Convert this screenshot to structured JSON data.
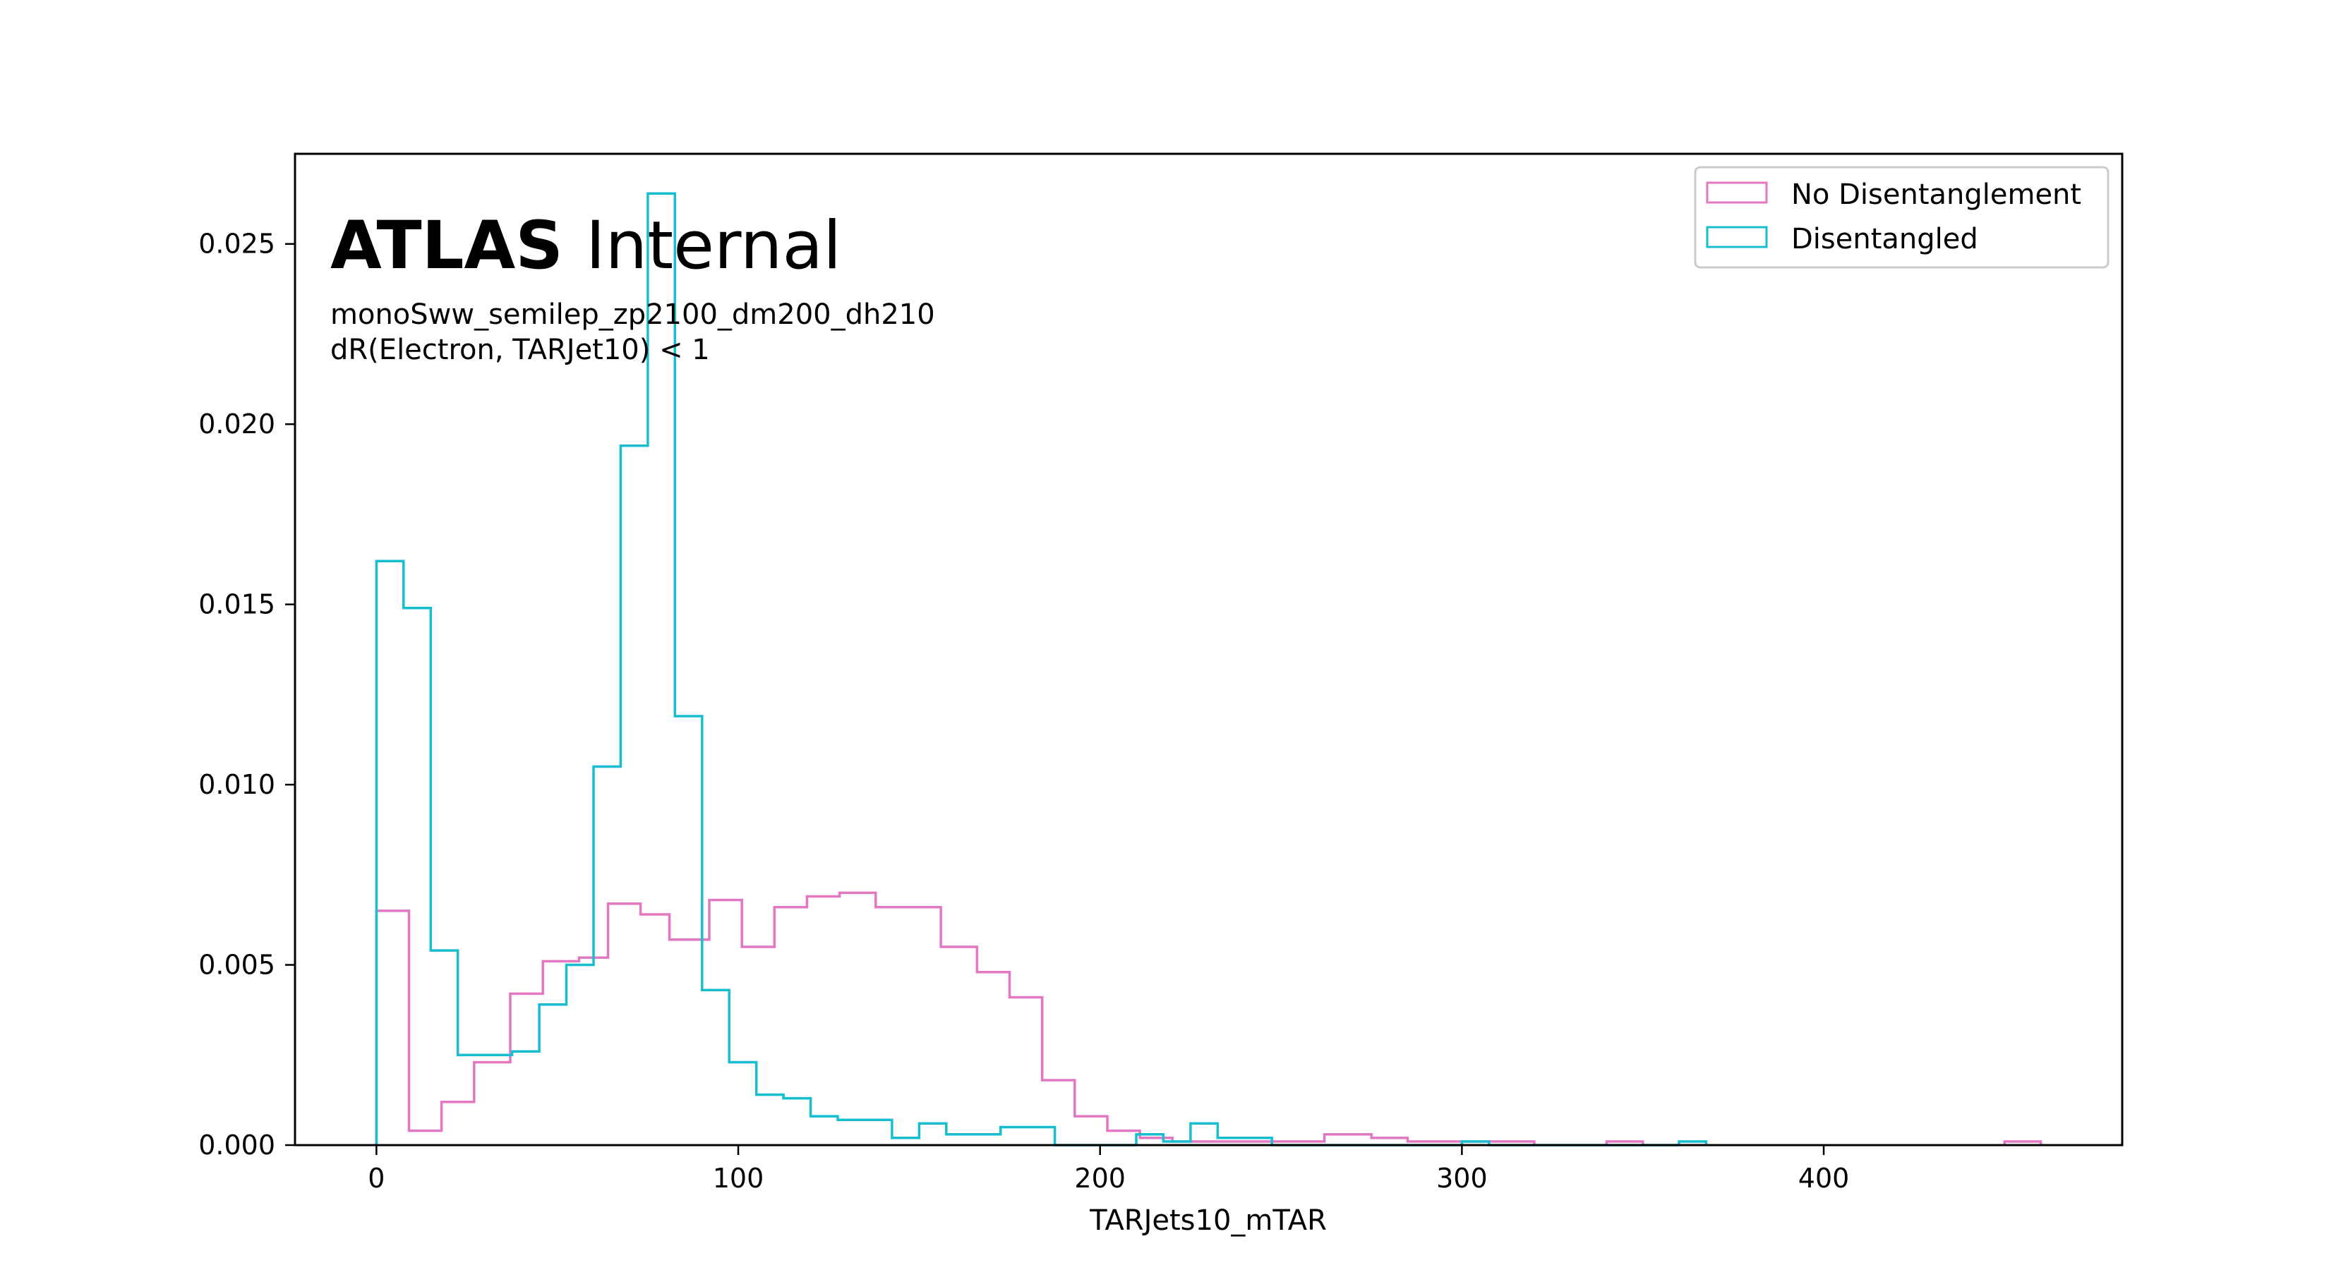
{
  "chart_data": {
    "type": "histogram-step",
    "xlabel": "TARJets10_mTAR",
    "ylabel": "",
    "xlim": [
      -22.5,
      482.5
    ],
    "ylim": [
      0,
      0.0275
    ],
    "xticks": [
      0,
      100,
      200,
      300,
      400
    ],
    "xtick_labels": [
      "0",
      "100",
      "200",
      "300",
      "400"
    ],
    "yticks": [
      0,
      0.005,
      0.01,
      0.015,
      0.02,
      0.025
    ],
    "ytick_labels": [
      "0.000",
      "0.005",
      "0.010",
      "0.015",
      "0.020",
      "0.025"
    ],
    "grid": false,
    "legend_position": "top-right",
    "annotations": {
      "experiment": "ATLAS",
      "status": "Internal",
      "sample": "monoSww_semilep_zp2100_dm200_dh210",
      "selection": "dR(Electron, TARJet10) < 1"
    },
    "bin_width": 7.5,
    "series": [
      {
        "name": "No Disentanglement",
        "color": "#e377c2",
        "bins": [
          [
            0,
            9,
            0.0065
          ],
          [
            9,
            18,
            0.0004
          ],
          [
            18,
            27,
            0.0012
          ],
          [
            27,
            37,
            0.0023
          ],
          [
            37,
            46,
            0.0042
          ],
          [
            46,
            56,
            0.0051
          ],
          [
            56,
            64,
            0.0052
          ],
          [
            64,
            73,
            0.0067
          ],
          [
            73,
            81,
            0.0064
          ],
          [
            81,
            92,
            0.0057
          ],
          [
            92,
            101,
            0.0068
          ],
          [
            101,
            110,
            0.0055
          ],
          [
            110,
            119,
            0.0066
          ],
          [
            119,
            128,
            0.0069
          ],
          [
            128,
            138,
            0.007
          ],
          [
            138,
            156,
            0.0066
          ],
          [
            156,
            166,
            0.0055
          ],
          [
            166,
            175,
            0.0048
          ],
          [
            175,
            184,
            0.0041
          ],
          [
            184,
            193,
            0.0018
          ],
          [
            193,
            202,
            0.0008
          ],
          [
            202,
            211,
            0.0004
          ],
          [
            211,
            220,
            0.0002
          ],
          [
            220,
            230,
            0.0001
          ],
          [
            230,
            262,
            0.0001
          ],
          [
            262,
            275,
            0.0003
          ],
          [
            275,
            285,
            0.0002
          ],
          [
            285,
            320,
            0.0001
          ],
          [
            340,
            350,
            0.0001
          ],
          [
            450,
            460,
            0.0001
          ]
        ]
      },
      {
        "name": "Disentangled",
        "color": "#17becf",
        "bins": [
          [
            0,
            7.5,
            0.0162
          ],
          [
            7.5,
            15,
            0.0149
          ],
          [
            15,
            22.5,
            0.0054
          ],
          [
            22.5,
            30,
            0.0025
          ],
          [
            30,
            37.5,
            0.0025
          ],
          [
            37.5,
            45,
            0.0026
          ],
          [
            45,
            52.5,
            0.0039
          ],
          [
            52.5,
            60,
            0.005
          ],
          [
            60,
            67.5,
            0.0105
          ],
          [
            67.5,
            75,
            0.0194
          ],
          [
            75,
            82.5,
            0.0264
          ],
          [
            82.5,
            90,
            0.0119
          ],
          [
            90,
            97.5,
            0.0043
          ],
          [
            97.5,
            105,
            0.0023
          ],
          [
            105,
            112.5,
            0.0014
          ],
          [
            112.5,
            120,
            0.0013
          ],
          [
            120,
            127.5,
            0.0008
          ],
          [
            127.5,
            135,
            0.0007
          ],
          [
            135,
            142.5,
            0.0007
          ],
          [
            142.5,
            150,
            0.0002
          ],
          [
            150,
            157.5,
            0.0006
          ],
          [
            157.5,
            165,
            0.0003
          ],
          [
            165,
            172.5,
            0.0003
          ],
          [
            172.5,
            180,
            0.0005
          ],
          [
            180,
            187.5,
            0.0005
          ],
          [
            187.5,
            210,
            0
          ],
          [
            210,
            217.5,
            0.0003
          ],
          [
            217.5,
            225,
            0.0001
          ],
          [
            225,
            232.5,
            0.0006
          ],
          [
            232.5,
            247.5,
            0.0002
          ],
          [
            247.5,
            300,
            0
          ],
          [
            300,
            307.5,
            0.0001
          ],
          [
            307.5,
            360,
            0
          ],
          [
            360,
            367.5,
            0.0001
          ]
        ]
      }
    ]
  }
}
